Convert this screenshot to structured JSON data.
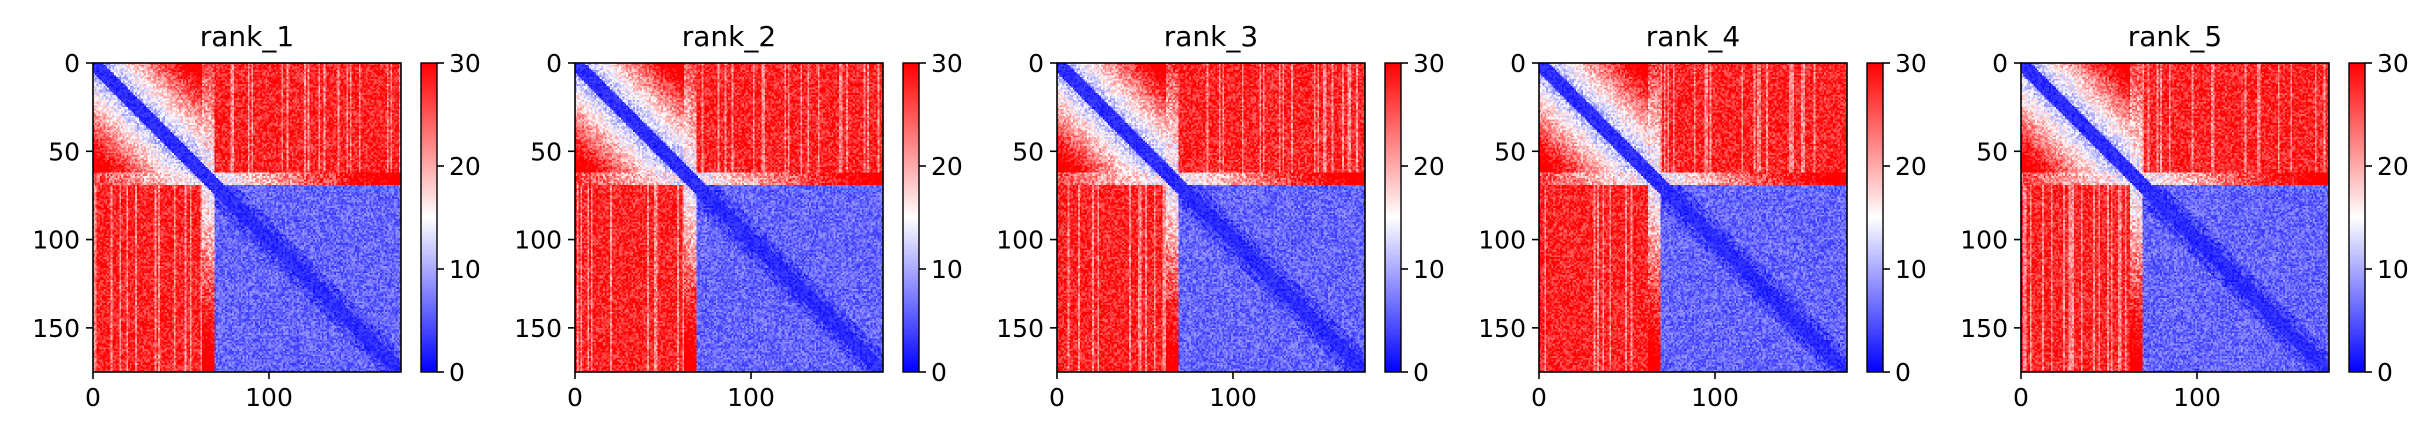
{
  "chart_data": [
    {
      "type": "heatmap",
      "title": "rank_1",
      "matrix_size": 175,
      "xlim": [
        0,
        175
      ],
      "ylim": [
        175,
        0
      ],
      "xticks": [
        0,
        100
      ],
      "yticks": [
        0,
        50,
        100,
        150
      ],
      "colorbar": {
        "min": 0,
        "max": 30,
        "ticks": [
          0,
          10,
          20,
          30
        ],
        "colormap": [
          "#0000ff",
          "#ffffff",
          "#ff0000"
        ]
      },
      "structure": {
        "domain1_end": 62,
        "domain2_start": 68,
        "low_band_width": 6
      }
    },
    {
      "type": "heatmap",
      "title": "rank_2",
      "matrix_size": 175,
      "xlim": [
        0,
        175
      ],
      "ylim": [
        175,
        0
      ],
      "xticks": [
        0,
        100
      ],
      "yticks": [
        0,
        50,
        100,
        150
      ],
      "colorbar": {
        "min": 0,
        "max": 30,
        "ticks": [
          0,
          10,
          20,
          30
        ],
        "colormap": [
          "#0000ff",
          "#ffffff",
          "#ff0000"
        ]
      },
      "structure": {
        "domain1_end": 62,
        "domain2_start": 68,
        "low_band_width": 6
      }
    },
    {
      "type": "heatmap",
      "title": "rank_3",
      "matrix_size": 175,
      "xlim": [
        0,
        175
      ],
      "ylim": [
        175,
        0
      ],
      "xticks": [
        0,
        100
      ],
      "yticks": [
        0,
        50,
        100,
        150
      ],
      "colorbar": {
        "min": 0,
        "max": 30,
        "ticks": [
          0,
          10,
          20,
          30
        ],
        "colormap": [
          "#0000ff",
          "#ffffff",
          "#ff0000"
        ]
      },
      "structure": {
        "domain1_end": 62,
        "domain2_start": 68,
        "low_band_width": 6
      }
    },
    {
      "type": "heatmap",
      "title": "rank_4",
      "matrix_size": 175,
      "xlim": [
        0,
        175
      ],
      "ylim": [
        175,
        0
      ],
      "xticks": [
        0,
        100
      ],
      "yticks": [
        0,
        50,
        100,
        150
      ],
      "colorbar": {
        "min": 0,
        "max": 30,
        "ticks": [
          0,
          10,
          20,
          30
        ],
        "colormap": [
          "#0000ff",
          "#ffffff",
          "#ff0000"
        ]
      },
      "structure": {
        "domain1_end": 62,
        "domain2_start": 68,
        "low_band_width": 6
      }
    },
    {
      "type": "heatmap",
      "title": "rank_5",
      "matrix_size": 175,
      "xlim": [
        0,
        175
      ],
      "ylim": [
        175,
        0
      ],
      "xticks": [
        0,
        100
      ],
      "yticks": [
        0,
        50,
        100,
        150
      ],
      "colorbar": {
        "min": 0,
        "max": 30,
        "ticks": [
          0,
          10,
          20,
          30
        ],
        "colormap": [
          "#0000ff",
          "#ffffff",
          "#ff0000"
        ]
      },
      "structure": {
        "domain1_end": 62,
        "domain2_start": 68,
        "low_band_width": 6
      }
    }
  ]
}
